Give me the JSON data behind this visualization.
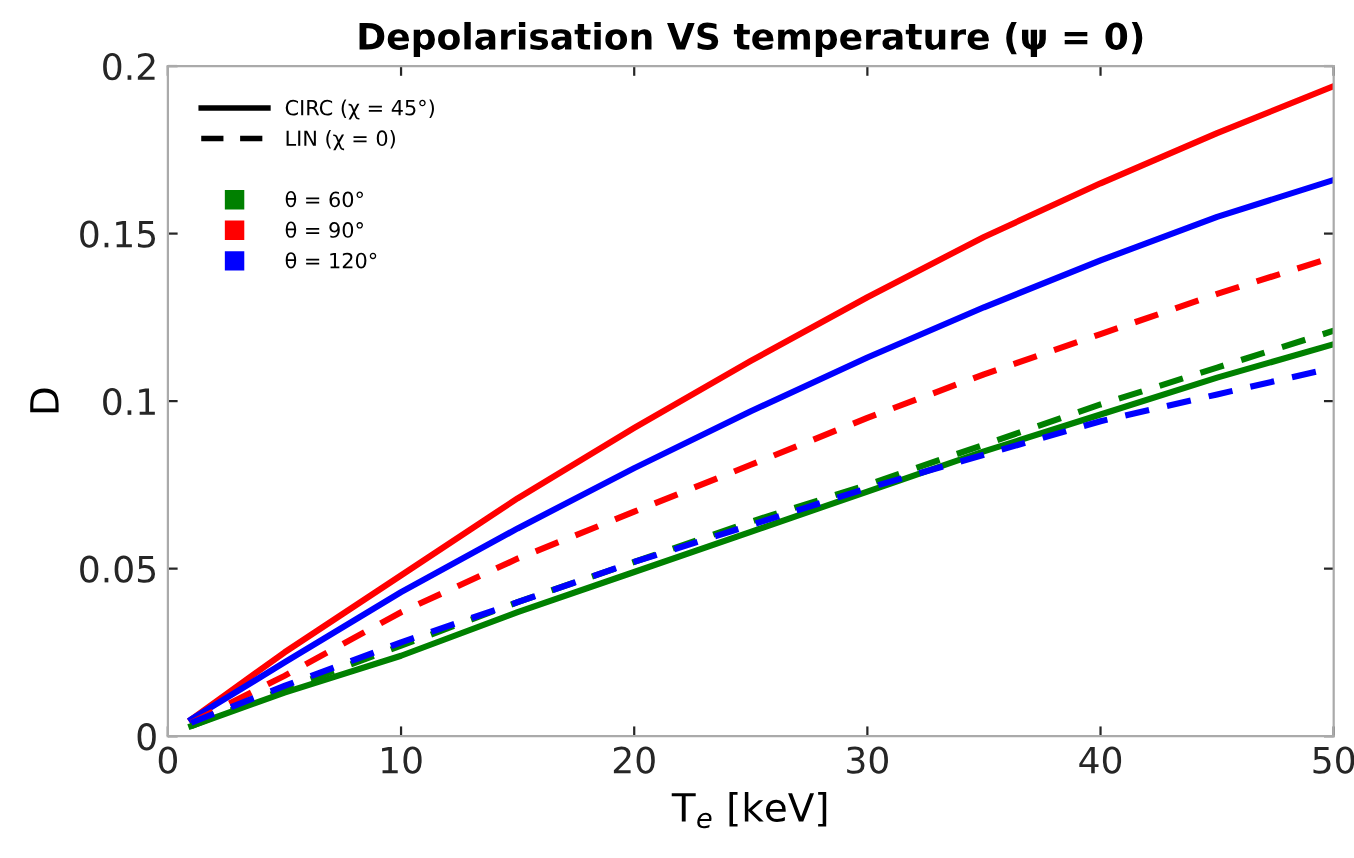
{
  "chart_data": {
    "type": "line",
    "title": "Depolarisation VS temperature (ψ = 0)",
    "xlabel": "T$_{e}$ [keV]",
    "ylabel": "D",
    "x": [
      1,
      5,
      10,
      15,
      20,
      25,
      30,
      35,
      40,
      45,
      50
    ],
    "series": [
      {
        "color": "#ff0000",
        "line_style": "solid",
        "values": [
          0.005,
          0.025,
          0.048,
          0.071,
          0.092,
          0.112,
          0.131,
          0.149,
          0.165,
          0.18,
          0.194
        ]
      },
      {
        "color": "#0000ff",
        "line_style": "solid",
        "values": [
          0.005,
          0.022,
          0.043,
          0.062,
          0.08,
          0.097,
          0.113,
          0.128,
          0.142,
          0.155,
          0.166
        ]
      },
      {
        "color": "#008000",
        "line_style": "solid",
        "values": [
          0.003,
          0.013,
          0.024,
          0.037,
          0.049,
          0.061,
          0.073,
          0.085,
          0.096,
          0.107,
          0.117
        ]
      },
      {
        "color": "#ff0000",
        "line_style": "dashed",
        "values": [
          0.004,
          0.018,
          0.037,
          0.053,
          0.067,
          0.081,
          0.095,
          0.108,
          0.12,
          0.132,
          0.143
        ]
      },
      {
        "color": "#008000",
        "line_style": "dashed",
        "values": [
          0.003,
          0.014,
          0.027,
          0.04,
          0.052,
          0.064,
          0.075,
          0.087,
          0.099,
          0.11,
          0.121
        ]
      },
      {
        "color": "#0000ff",
        "line_style": "dashed",
        "values": [
          0.004,
          0.015,
          0.028,
          0.04,
          0.052,
          0.063,
          0.074,
          0.084,
          0.094,
          0.102,
          0.11
        ]
      }
    ],
    "annotations": [
      "CIRC (χ = 45°)",
      "LIN (χ = 0)",
      "θ = 60°",
      "θ = 90°",
      "θ = 120°"
    ],
    "xlim": [
      0,
      50
    ],
    "ylim": [
      0,
      0.2
    ],
    "xticks": [
      0,
      10,
      20,
      30,
      40,
      50
    ],
    "yticks": [
      0,
      0.05,
      0.1,
      0.15,
      0.2
    ],
    "grid": false,
    "marker": "none"
  }
}
